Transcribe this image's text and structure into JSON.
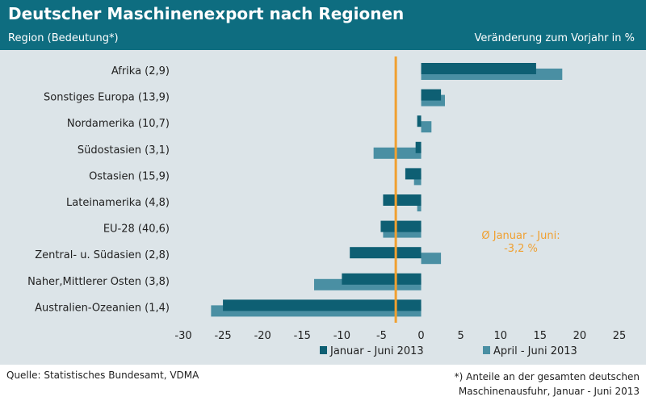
{
  "header": {
    "title": "Deutscher Maschinenexport nach Regionen",
    "subtitle_left": "Region (Bedeutung*)",
    "subtitle_right": "Veränderung  zum Vorjahr in %"
  },
  "colors": {
    "header_bg": "#0e6d80",
    "plot_bg": "#dce4e8",
    "series1": "#0e5f73",
    "series2": "#4a8fa3",
    "average_line": "#f0a030",
    "annotation": "#f0a030"
  },
  "chart_data": {
    "type": "bar",
    "orientation": "horizontal",
    "categories": [
      "Afrika  (2,9)",
      "Sonstiges Europa  (13,9)",
      "Nordamerika  (10,7)",
      "Südostasien  (3,1)",
      "Ostasien  (15,9)",
      "Lateinamerika  (4,8)",
      "EU-28  (40,6)",
      "Zentral- u. Südasien  (2,8)",
      "Naher,Mittlerer Osten  (3,8)",
      "Australien-Ozeanien  (1,4)"
    ],
    "series": [
      {
        "name": "Januar - Juni 2013",
        "values": [
          14.5,
          2.5,
          -0.5,
          -0.7,
          -2.0,
          -4.8,
          -5.1,
          -9.0,
          -10.0,
          -25.0
        ]
      },
      {
        "name": "April - Juni 2013",
        "values": [
          17.8,
          3.0,
          1.3,
          -6.0,
          -0.9,
          -0.5,
          -4.8,
          2.5,
          -13.5,
          -26.5
        ]
      }
    ],
    "xlim": [
      -30,
      25
    ],
    "xticks": [
      -30,
      -25,
      -20,
      -15,
      -10,
      -5,
      0,
      5,
      10,
      15,
      20,
      25
    ],
    "average_line": {
      "value": -3.2,
      "label_line1": "Ø Januar - Juni:",
      "label_line2": "-3,2 %"
    },
    "legend": "bottom-right",
    "grid": false
  },
  "footer": {
    "source": "Quelle: Statistisches Bundesamt, VDMA",
    "note_line1": "*) Anteile an der gesamten deutschen",
    "note_line2": "Maschinenausfuhr, Januar - Juni 2013"
  }
}
